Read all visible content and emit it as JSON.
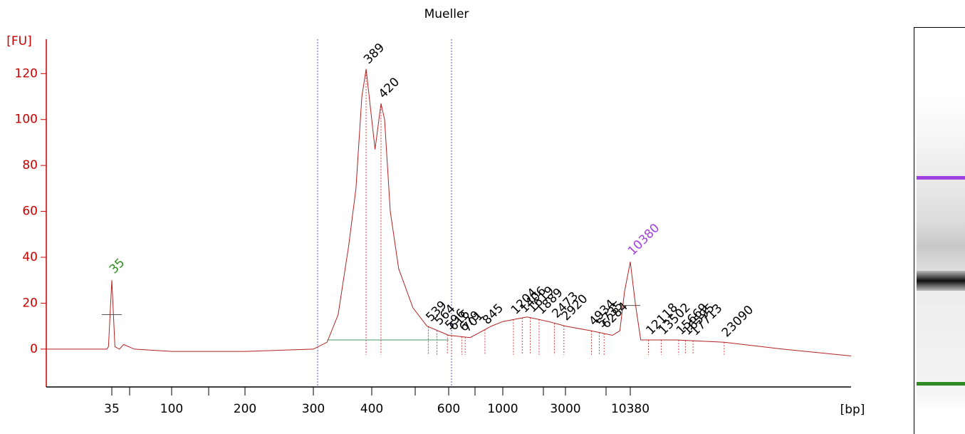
{
  "chart_data": {
    "type": "line",
    "title": "Mueller",
    "y_label": "[FU]",
    "x_label": "[bp]",
    "xlim": [
      11,
      68000
    ],
    "xticks": [
      35,
      100,
      200,
      300,
      400,
      600,
      1000,
      3000,
      10380
    ],
    "ylim": [
      -16.5,
      135
    ],
    "yticks": [
      0,
      20,
      40,
      60,
      80,
      100,
      120
    ],
    "series": [
      {
        "name": "Mueller",
        "color": "#b22222",
        "x": [
          11,
          32,
          33,
          35,
          37,
          40,
          43,
          52,
          100,
          200,
          300,
          321,
          339,
          357,
          370,
          381,
          389,
          395,
          407,
          420,
          428,
          441,
          461,
          497,
          535,
          600,
          735,
          898,
          1000,
          1531,
          2228,
          3000,
          4890,
          7380,
          8500,
          9300,
          10380,
          10830,
          11350,
          15340,
          23090,
          38000,
          68000
        ],
        "values": [
          0,
          0,
          1,
          30,
          1,
          0,
          2,
          0,
          -1,
          -1,
          0,
          3,
          15,
          45,
          70,
          110,
          122,
          110,
          87,
          107,
          100,
          60,
          35,
          18,
          10,
          6,
          5,
          10,
          12,
          14,
          12,
          10,
          8,
          6,
          8,
          25,
          38,
          20,
          4,
          4,
          3,
          0,
          -3
        ]
      }
    ],
    "peaks": [
      389,
      420,
      539,
      564,
      596,
      616,
      679,
      701,
      845,
      1204,
      1406,
      1619,
      1889,
      2473,
      2920,
      4934,
      5735,
      6284,
      12118,
      13502,
      15669,
      16595,
      17713,
      23090
    ],
    "marker_peaks": [
      {
        "value": 35,
        "color": "#2e8b22"
      },
      {
        "value": 10380,
        "color": "#a040e0"
      }
    ]
  }
}
